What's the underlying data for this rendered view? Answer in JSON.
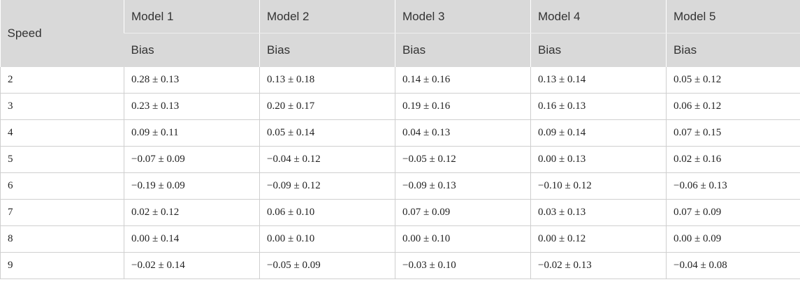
{
  "header": {
    "speed": "Speed",
    "models": [
      "Model 1",
      "Model 2",
      "Model 3",
      "Model 4",
      "Model 5"
    ],
    "sub": [
      "Bias",
      "Bias",
      "Bias",
      "Bias",
      "Bias"
    ]
  },
  "rows": [
    {
      "speed": "2",
      "vals": [
        "0.28 ± 0.13",
        "0.13 ± 0.18",
        "0.14 ± 0.16",
        "0.13 ± 0.14",
        "0.05 ± 0.12"
      ]
    },
    {
      "speed": "3",
      "vals": [
        "0.23 ± 0.13",
        "0.20 ± 0.17",
        "0.19 ± 0.16",
        "0.16 ± 0.13",
        "0.06 ± 0.12"
      ]
    },
    {
      "speed": "4",
      "vals": [
        "0.09 ± 0.11",
        "0.05 ± 0.14",
        "0.04 ± 0.13",
        "0.09 ± 0.14",
        "0.07 ± 0.15"
      ]
    },
    {
      "speed": "5",
      "vals": [
        "−0.07 ± 0.09",
        "−0.04 ± 0.12",
        "−0.05 ± 0.12",
        "0.00 ± 0.13",
        "0.02 ± 0.16"
      ]
    },
    {
      "speed": "6",
      "vals": [
        "−0.19 ± 0.09",
        "−0.09 ± 0.12",
        "−0.09 ± 0.13",
        "−0.10 ± 0.12",
        "−0.06 ± 0.13"
      ]
    },
    {
      "speed": "7",
      "vals": [
        "0.02 ± 0.12",
        "0.06 ± 0.10",
        "0.07 ± 0.09",
        "0.03 ± 0.13",
        "0.07 ± 0.09"
      ]
    },
    {
      "speed": "8",
      "vals": [
        "0.00 ± 0.14",
        "0.00 ± 0.10",
        "0.00 ± 0.10",
        "0.00 ± 0.12",
        "0.00 ± 0.09"
      ]
    },
    {
      "speed": "9",
      "vals": [
        "−0.02 ± 0.14",
        "−0.05 ± 0.09",
        "−0.03 ± 0.10",
        "−0.02 ± 0.13",
        "−0.04 ± 0.08"
      ]
    }
  ]
}
